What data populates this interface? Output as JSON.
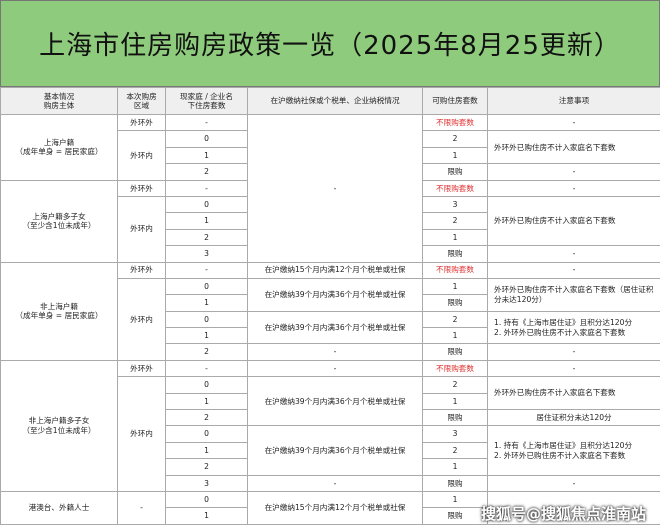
{
  "title": "上海市住房购房政策一览（2025年8月25更新）",
  "table": {
    "header": [
      "基本情况\n购房主体",
      "本次购房\n区域",
      "现家庭 / 企业名\n下住房套数",
      "在沪缴纳社保或个税单、企业纳税情况",
      "可购住房套数",
      "注意事项"
    ],
    "rows": [
      [
        "上海户籍\n（成年单身 = 居民家庭）",
        "外环外",
        "-",
        "-",
        "不限购套数",
        "-"
      ],
      [
        "外环内",
        "0",
        "2",
        "外环外已购住房不计入家庭名下套数"
      ],
      [
        "1",
        "1"
      ],
      [
        "2",
        "限购",
        "-"
      ],
      [
        "上海户籍多子女\n（至少含1位未成年）",
        "外环外",
        "-",
        "不限购套数",
        "-"
      ],
      [
        "外环内",
        "0",
        "3",
        "外环外已购住房不计入家庭名下套数"
      ],
      [
        "1",
        "2"
      ],
      [
        "2",
        "1"
      ],
      [
        "3",
        "限购",
        "-"
      ],
      [
        "非上海户籍\n（成年单身 = 居民家庭）",
        "外环外",
        "-",
        "在沪缴纳15个月内满12个月个税单或社保",
        "不限购套数",
        "-"
      ],
      [
        "外环内",
        "0",
        "在沪缴纳39个月内满36个月个税单或社保",
        "1",
        "外环外已购住房不计入家庭名下套数（居住证积分未达120分）"
      ],
      [
        "1",
        "限购"
      ],
      [
        "0",
        "在沪缴纳39个月内满36个月个税单或社保",
        "2",
        "1. 持有《上海市居住证》且积分达120分\n2. 外环外已购住房不计入家庭名下套数"
      ],
      [
        "1",
        "1"
      ],
      [
        "2",
        "-",
        "限购",
        "-"
      ],
      [
        "非上海户籍多子女\n（至少含1位未成年）",
        "外环外",
        "-",
        "-",
        "不限购套数",
        "-"
      ],
      [
        "外环内",
        "0",
        "在沪缴纳39个月内满36个月个税单或社保",
        "2",
        "外环外已购住房不计入家庭名下套数"
      ],
      [
        "1",
        "1"
      ],
      [
        "2",
        "限购",
        "居住证积分未达120分"
      ],
      [
        "0",
        "在沪缴纳39个月内满36个月个税单或社保",
        "3",
        "1. 持有《上海市居住证》且积分达120分\n2. 外环外已购住房不计入家庭名下套数"
      ],
      [
        "1",
        "2"
      ],
      [
        "2",
        "1"
      ],
      [
        "3",
        "-",
        "限购",
        "-"
      ],
      [
        "港澳台、外籍人士",
        "-",
        "0",
        "在沪缴纳15个月内满12个月个税单或社保",
        "1"
      ],
      [
        "1",
        "限购"
      ]
    ]
  },
  "watermark": "搜狐号@搜狐焦点淮南站"
}
